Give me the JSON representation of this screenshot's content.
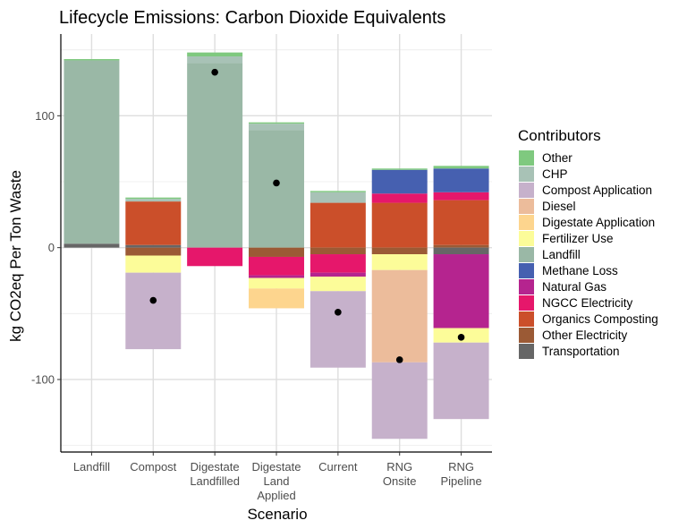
{
  "chart_data": {
    "type": "bar",
    "stacked": true,
    "title": "Lifecycle Emissions: Carbon Dioxide Equivalents",
    "xlabel": "Scenario",
    "ylabel": "kg CO2eq Per Ton Waste",
    "ylim": [
      -155,
      162
    ],
    "yticks": [
      -100,
      0,
      100
    ],
    "grid": true,
    "legend": {
      "title": "Contributors",
      "position": "right"
    },
    "categories": [
      [
        "Landfill"
      ],
      [
        "Compost"
      ],
      [
        "Digestate",
        "Landfilled"
      ],
      [
        "Digestate",
        "Land",
        "Applied"
      ],
      [
        "Current"
      ],
      [
        "RNG",
        "Onsite"
      ],
      [
        "RNG",
        "Pipeline"
      ]
    ],
    "contributors": [
      {
        "name": "Other",
        "color": "#7fc97f"
      },
      {
        "name": "CHP",
        "color": "#a8c2b6"
      },
      {
        "name": "Compost Application",
        "color": "#c6b1cb"
      },
      {
        "name": "Diesel",
        "color": "#ecbc9b"
      },
      {
        "name": "Digestate Application",
        "color": "#fdd58e"
      },
      {
        "name": "Fertilizer Use",
        "color": "#fcfc99"
      },
      {
        "name": "Landfill",
        "color": "#9ab8a6"
      },
      {
        "name": "Methane Loss",
        "color": "#4660b0"
      },
      {
        "name": "Natural Gas",
        "color": "#b5248f"
      },
      {
        "name": "NGCC Electricity",
        "color": "#e6176b"
      },
      {
        "name": "Organics Composting",
        "color": "#cb4f2a"
      },
      {
        "name": "Other Electricity",
        "color": "#9b5a35"
      },
      {
        "name": "Transportation",
        "color": "#666666"
      }
    ],
    "series": [
      {
        "category": "Landfill",
        "segments": [
          {
            "name": "Transportation",
            "from": 0,
            "to": 3
          },
          {
            "name": "Landfill",
            "from": 3,
            "to": 142
          },
          {
            "name": "Other",
            "from": 142,
            "to": 143
          }
        ]
      },
      {
        "category": "Compost",
        "segments": [
          {
            "name": "Transportation",
            "from": 0,
            "to": 2
          },
          {
            "name": "Organics Composting",
            "from": 2,
            "to": 35
          },
          {
            "name": "CHP",
            "from": 35,
            "to": 37
          },
          {
            "name": "Other",
            "from": 37,
            "to": 38
          },
          {
            "name": "Other Electricity",
            "from": 0,
            "to": -6
          },
          {
            "name": "Fertilizer Use",
            "from": -6,
            "to": -19
          },
          {
            "name": "Compost Application",
            "from": -19,
            "to": -77
          }
        ]
      },
      {
        "category": "Digestate Landfilled",
        "segments": [
          {
            "name": "Landfill",
            "from": 0,
            "to": 140
          },
          {
            "name": "CHP",
            "from": 140,
            "to": 145
          },
          {
            "name": "Other",
            "from": 145,
            "to": 148
          },
          {
            "name": "NGCC Electricity",
            "from": 0,
            "to": -14
          }
        ]
      },
      {
        "category": "Digestate Land Applied",
        "segments": [
          {
            "name": "Landfill",
            "from": 0,
            "to": 89
          },
          {
            "name": "CHP",
            "from": 89,
            "to": 94
          },
          {
            "name": "Other",
            "from": 94,
            "to": 95
          },
          {
            "name": "Other Electricity",
            "from": 0,
            "to": -7
          },
          {
            "name": "NGCC Electricity",
            "from": -7,
            "to": -21
          },
          {
            "name": "Natural Gas",
            "from": -21,
            "to": -23
          },
          {
            "name": "Fertilizer Use",
            "from": -23,
            "to": -31
          },
          {
            "name": "Digestate Application",
            "from": -31,
            "to": -46
          }
        ]
      },
      {
        "category": "Current",
        "segments": [
          {
            "name": "Organics Composting",
            "from": 0,
            "to": 34
          },
          {
            "name": "CHP",
            "from": 34,
            "to": 42
          },
          {
            "name": "Other",
            "from": 42,
            "to": 43
          },
          {
            "name": "Other Electricity",
            "from": 0,
            "to": -5
          },
          {
            "name": "NGCC Electricity",
            "from": -5,
            "to": -19
          },
          {
            "name": "Natural Gas",
            "from": -19,
            "to": -22
          },
          {
            "name": "Fertilizer Use",
            "from": -22,
            "to": -33
          },
          {
            "name": "Compost Application",
            "from": -33,
            "to": -91
          }
        ]
      },
      {
        "category": "RNG Onsite",
        "segments": [
          {
            "name": "Organics Composting",
            "from": 0,
            "to": 34
          },
          {
            "name": "NGCC Electricity",
            "from": 34,
            "to": 41
          },
          {
            "name": "Methane Loss",
            "from": 41,
            "to": 59
          },
          {
            "name": "Other",
            "from": 59,
            "to": 60
          },
          {
            "name": "Other Electricity",
            "from": 0,
            "to": -5
          },
          {
            "name": "Fertilizer Use",
            "from": -5,
            "to": -17
          },
          {
            "name": "Diesel",
            "from": -17,
            "to": -87
          },
          {
            "name": "Compost Application",
            "from": -87,
            "to": -145
          }
        ]
      },
      {
        "category": "RNG Pipeline",
        "segments": [
          {
            "name": "Other Electricity",
            "from": 0,
            "to": 2
          },
          {
            "name": "Organics Composting",
            "from": 2,
            "to": 36
          },
          {
            "name": "NGCC Electricity",
            "from": 36,
            "to": 42
          },
          {
            "name": "Methane Loss",
            "from": 42,
            "to": 60
          },
          {
            "name": "Other",
            "from": 60,
            "to": 62
          },
          {
            "name": "Transportation",
            "from": 0,
            "to": -5
          },
          {
            "name": "Natural Gas",
            "from": -5,
            "to": -61
          },
          {
            "name": "Fertilizer Use",
            "from": -61,
            "to": -72
          },
          {
            "name": "Compost Application",
            "from": -72,
            "to": -130
          }
        ]
      }
    ],
    "net_points": [
      {
        "category": "Landfill",
        "value": null
      },
      {
        "category": "Compost",
        "value": -40
      },
      {
        "category": "Digestate Landfilled",
        "value": 133
      },
      {
        "category": "Digestate Land Applied",
        "value": 49
      },
      {
        "category": "Current",
        "value": -49
      },
      {
        "category": "RNG Onsite",
        "value": -85
      },
      {
        "category": "RNG Pipeline",
        "value": -68
      }
    ]
  }
}
